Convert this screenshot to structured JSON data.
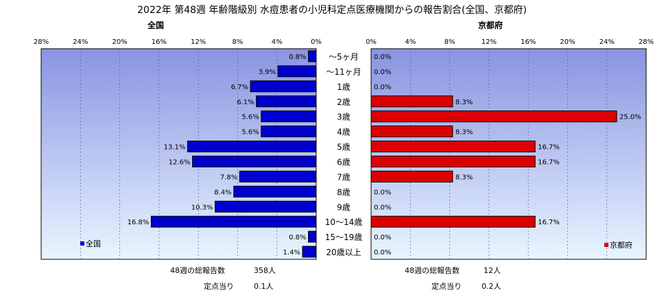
{
  "title": "2022年 第48週 年齢階級別 水痘患者の小児科定点医療機関からの報告割合(全国、京都府)",
  "chart_data": {
    "type": "bar",
    "orientation": "horizontal",
    "categories": [
      "～5ヶ月",
      "～11ヶ月",
      "1歳",
      "2歳",
      "3歳",
      "4歳",
      "5歳",
      "6歳",
      "7歳",
      "8歳",
      "9歳",
      "10～14歳",
      "15～19歳",
      "20歳以上"
    ],
    "xlim": [
      0,
      28
    ],
    "ticks": [
      "0%",
      "4%",
      "8%",
      "12%",
      "16%",
      "20%",
      "24%",
      "28%"
    ],
    "tick_values": [
      0,
      4,
      8,
      12,
      16,
      20,
      24,
      28
    ],
    "series": [
      {
        "name": "全国",
        "values": [
          0.8,
          3.9,
          6.7,
          6.1,
          5.6,
          5.6,
          13.1,
          12.6,
          7.8,
          8.4,
          10.3,
          16.8,
          0.8,
          1.4
        ],
        "labels": [
          "0.8%",
          "3.9%",
          "6.7%",
          "6.1%",
          "5.6%",
          "5.6%",
          "13.1%",
          "12.6%",
          "7.8%",
          "8.4%",
          "10.3%",
          "16.8%",
          "0.8%",
          "1.4%"
        ],
        "color": "#0000cc",
        "direction": "left"
      },
      {
        "name": "京都府",
        "values": [
          0,
          0,
          0,
          8.3,
          25.0,
          8.3,
          16.7,
          16.7,
          8.3,
          0,
          0,
          16.7,
          0,
          0
        ],
        "labels": [
          "0.0%",
          "0.0%",
          "0.0%",
          "8.3%",
          "25.0%",
          "8.3%",
          "16.7%",
          "16.7%",
          "8.3%",
          "0.0%",
          "0.0%",
          "16.7%",
          "0.0%",
          "0.0%"
        ],
        "color": "#dd0000",
        "direction": "right"
      }
    ],
    "legend_placement": "bottom-left / bottom-right inside plot",
    "grid": true
  },
  "panels": {
    "left": {
      "heading": "全国",
      "legend": "全国",
      "total_label": "48週の総報告数",
      "total_value": "358人",
      "per_label": "定点当り",
      "per_value": "0.1人"
    },
    "right": {
      "heading": "京都府",
      "legend": "京都府",
      "total_label": "48週の総報告数",
      "total_value": "12人",
      "per_label": "定点当り",
      "per_value": "0.2人"
    }
  },
  "colors": {
    "plot_top": "#8a93e0",
    "plot_bottom": "#e8f6ff",
    "national_bar": "#0000cc",
    "kyoto_bar": "#dd0000"
  }
}
